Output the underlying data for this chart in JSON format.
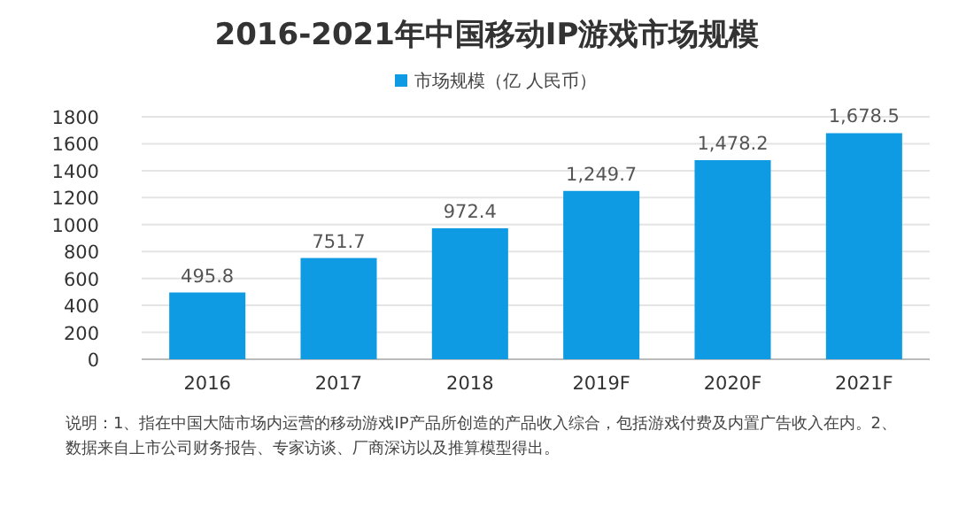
{
  "chart_data": {
    "type": "bar",
    "title": "2016-2021年中国移动IP游戏市场规模",
    "categories": [
      "2016",
      "2017",
      "2018",
      "2019F",
      "2020F",
      "2021F"
    ],
    "series": [
      {
        "name": "市场规模（亿 人民币）",
        "color": "#0e9be3",
        "values": [
          495.8,
          751.7,
          972.4,
          1249.7,
          1478.2,
          1678.5
        ],
        "value_labels": [
          "495.8",
          "751.7",
          "972.4",
          "1,249.7",
          "1,478.2",
          "1,678.5"
        ]
      }
    ],
    "ylim": [
      0,
      1800
    ],
    "yticks": [
      0,
      200,
      400,
      600,
      800,
      1000,
      1200,
      1400,
      1600,
      1800
    ],
    "grid": "y",
    "legend": "top",
    "annotations": [
      "说明：1、指在中国大陆市场内运营的移动游戏IP产品所创造的产品收入综合，包括游戏付费及内置广告收入在内。2、",
      "数据来自上市公司财务报告、专家访谈、厂商深访以及推算模型得出。"
    ]
  }
}
